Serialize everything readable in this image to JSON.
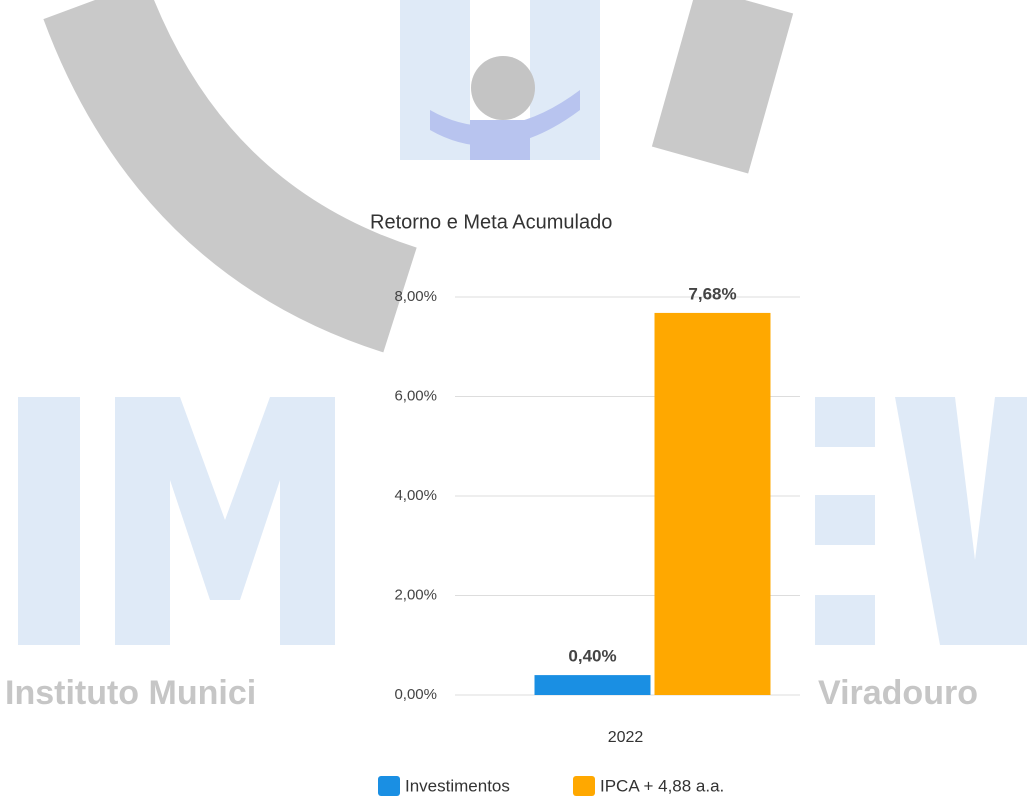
{
  "watermark": {
    "left_text": "Instituto Munici",
    "right_text": "Viradouro"
  },
  "chart_data": {
    "type": "bar",
    "title": "Retorno e Meta Acumulado",
    "categories": [
      "2022"
    ],
    "series": [
      {
        "name": "Investimentos",
        "color": "#1a8fe3",
        "values": [
          0.4
        ],
        "value_labels": [
          "0,40%"
        ]
      },
      {
        "name": "IPCA + 4,88 a.a.",
        "color": "#ffa800",
        "values": [
          7.68
        ],
        "value_labels": [
          "7,68%"
        ]
      }
    ],
    "ylim": [
      0,
      8
    ],
    "yticks": [
      {
        "value": 0,
        "label": "0,00%"
      },
      {
        "value": 2,
        "label": "2,00%"
      },
      {
        "value": 4,
        "label": "4,00%"
      },
      {
        "value": 6,
        "label": "6,00%"
      },
      {
        "value": 8,
        "label": "8,00%"
      }
    ],
    "grid": true,
    "legend": "bottom"
  }
}
